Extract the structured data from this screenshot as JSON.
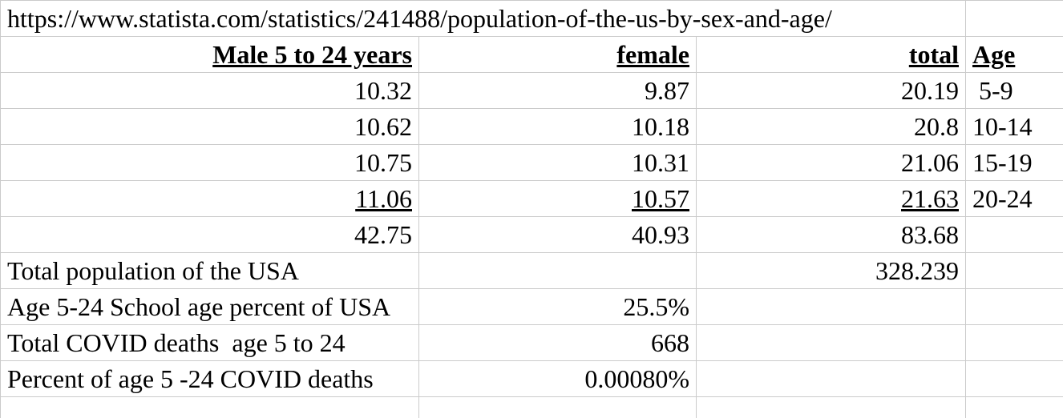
{
  "colors": {
    "background": "#ffffff",
    "gridline": "#cbcbcb",
    "text": "#000000"
  },
  "sheet": {
    "url_row": {
      "url": "https://www.statista.com/statistics/241488/population-of-the-us-by-sex-and-age/"
    },
    "header": {
      "male": "Male 5 to 24 years",
      "female": "female",
      "total": "total",
      "age": "Age"
    },
    "age_rows": [
      {
        "male": "10.32",
        "female": "9.87",
        "total": "20.19",
        "age": " 5-9"
      },
      {
        "male": "10.62",
        "female": "10.18",
        "total": "20.8",
        "age": "10-14"
      },
      {
        "male": "10.75",
        "female": "10.31",
        "total": "21.06",
        "age": "15-19"
      },
      {
        "male": "11.06",
        "female": "10.57",
        "total": "21.63",
        "age": "20-24"
      }
    ],
    "sum_row": {
      "male": "42.75",
      "female": "40.93",
      "total": "83.68"
    },
    "summary_rows": [
      {
        "label": "Total population of the USA",
        "value": "328.239",
        "value_column": "total"
      },
      {
        "label": "Age 5-24 School age percent of USA",
        "value": "25.5%",
        "value_column": "female"
      },
      {
        "label": "Total COVID deaths  age 5 to 24",
        "value": "668",
        "value_column": "female"
      },
      {
        "label": "Percent of age 5 -24 COVID deaths",
        "value": "0.00080%",
        "value_column": "female"
      }
    ]
  }
}
